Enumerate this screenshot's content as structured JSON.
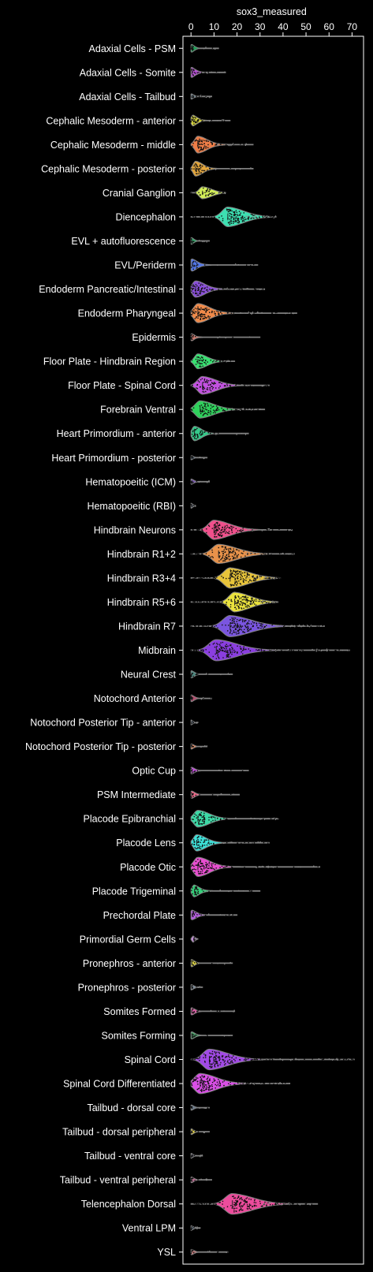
{
  "chart_data": {
    "type": "violin",
    "orientation": "horizontal",
    "xlabel": "sox3_measured",
    "xlim": [
      -3.5,
      75
    ],
    "xticks": [
      0,
      10,
      20,
      30,
      40,
      50,
      60,
      70
    ],
    "xaxis_position": "top",
    "grid": false,
    "background": "#000000",
    "categories": [
      {
        "label": "Adaxial Cells - PSM",
        "color": "#1f9e57",
        "shape": "spike",
        "width": 0.32,
        "peak": 0.4,
        "spread": 1.2,
        "tail": 2.5,
        "max": 12,
        "n": 12
      },
      {
        "label": "Adaxial Cells - Somite",
        "color": "#b54fd4",
        "shape": "spike",
        "width": 0.42,
        "peak": 0.5,
        "spread": 1.8,
        "tail": 3,
        "max": 15,
        "n": 18
      },
      {
        "label": "Adaxial Cells - Tailbud",
        "color": "#6b7f8a",
        "shape": "spike",
        "width": 0.22,
        "peak": 0.3,
        "spread": 1,
        "tail": 2,
        "max": 9,
        "n": 8
      },
      {
        "label": "Cephalic Mesoderm - anterior",
        "color": "#d9d63b",
        "shape": "spike",
        "width": 0.45,
        "peak": 1,
        "spread": 1.8,
        "tail": 4,
        "max": 17,
        "n": 30
      },
      {
        "label": "Cephalic Mesoderm - middle",
        "color": "#ee7d47",
        "shape": "hump",
        "width": 0.7,
        "peak": 3,
        "spread": 4,
        "tail": 9,
        "max": 27,
        "n": 70
      },
      {
        "label": "Cephalic Mesoderm - posterior",
        "color": "#e2a53c",
        "shape": "hump",
        "width": 0.62,
        "peak": 2,
        "spread": 3,
        "tail": 7,
        "max": 27,
        "n": 40
      },
      {
        "label": "Cranial Ganglion",
        "color": "#d3ee58",
        "shape": "hump",
        "width": 0.5,
        "peak": 5,
        "spread": 4,
        "tail": 5,
        "max": 15,
        "n": 35
      },
      {
        "label": "Diencephalon",
        "color": "#3de0b2",
        "shape": "hump",
        "width": 0.82,
        "peak": 16,
        "spread": 7,
        "tail": 9,
        "max": 37,
        "n": 140
      },
      {
        "label": "EVL + autofluorescence",
        "color": "#2fa86a",
        "shape": "spike",
        "width": 0.28,
        "peak": 0.3,
        "spread": 1,
        "tail": 2,
        "max": 8,
        "n": 8
      },
      {
        "label": "EVL/Periderm",
        "color": "#5276e8",
        "shape": "spike",
        "width": 0.5,
        "peak": 0.6,
        "spread": 2,
        "tail": 6,
        "max": 29,
        "n": 20
      },
      {
        "label": "Endoderm Pancreatic/Intestinal",
        "color": "#8a4fd9",
        "shape": "hump",
        "width": 0.68,
        "peak": 2,
        "spread": 4,
        "tail": 9,
        "max": 32,
        "n": 70
      },
      {
        "label": "Endoderm Pharyngeal",
        "color": "#f08a4a",
        "shape": "hump",
        "width": 0.8,
        "peak": 3,
        "spread": 5,
        "tail": 11,
        "max": 46,
        "n": 110
      },
      {
        "label": "Epidermis",
        "color": "#d07a6e",
        "shape": "spike",
        "width": 0.3,
        "peak": 0.3,
        "spread": 1,
        "tail": 5,
        "max": 30,
        "n": 12
      },
      {
        "label": "Floor Plate - Hindbrain Region",
        "color": "#39e072",
        "shape": "hump",
        "width": 0.62,
        "peak": 3,
        "spread": 4,
        "tail": 6,
        "max": 19,
        "n": 45
      },
      {
        "label": "Floor Plate - Spinal Cord",
        "color": "#c251e0",
        "shape": "hump",
        "width": 0.74,
        "peak": 5,
        "spread": 6,
        "tail": 8,
        "max": 34,
        "n": 80
      },
      {
        "label": "Forebrain Ventral",
        "color": "#2fd15c",
        "shape": "hump",
        "width": 0.72,
        "peak": 4,
        "spread": 6,
        "tail": 8,
        "max": 32,
        "n": 80
      },
      {
        "label": "Heart Primordium - anterior",
        "color": "#35c98a",
        "shape": "hump",
        "width": 0.6,
        "peak": 1.5,
        "spread": 3,
        "tail": 6,
        "max": 25,
        "n": 40
      },
      {
        "label": "Heart Primordium - posterior",
        "color": "#4b5f70",
        "shape": "spike",
        "width": 0.18,
        "peak": 0.2,
        "spread": 0.8,
        "tail": 2,
        "max": 7,
        "n": 6
      },
      {
        "label": "Hematopoeitic (ICM)",
        "color": "#7c5bb3",
        "shape": "spike",
        "width": 0.22,
        "peak": 0.3,
        "spread": 1,
        "tail": 2,
        "max": 8,
        "n": 8
      },
      {
        "label": "Hematopoeitic (RBI)",
        "color": "#5b6a78",
        "shape": "spike",
        "width": 0.2,
        "peak": 0.2,
        "spread": 0.8,
        "tail": 1,
        "max": 2,
        "n": 5
      },
      {
        "label": "Hindbrain Neurons",
        "color": "#f0508c",
        "shape": "hump",
        "width": 0.8,
        "peak": 10,
        "spread": 7,
        "tail": 10,
        "max": 44,
        "n": 120
      },
      {
        "label": "Hindbrain R1+2",
        "color": "#e8924a",
        "shape": "hump",
        "width": 0.8,
        "peak": 12,
        "spread": 8,
        "tail": 10,
        "max": 45,
        "n": 120
      },
      {
        "label": "Hindbrain R3+4",
        "color": "#e8c43a",
        "shape": "hump",
        "width": 0.85,
        "peak": 17,
        "spread": 8,
        "tail": 8,
        "max": 39,
        "n": 150
      },
      {
        "label": "Hindbrain R5+6",
        "color": "#eae23e",
        "shape": "hump",
        "width": 0.82,
        "peak": 19,
        "spread": 7,
        "tail": 7,
        "max": 38,
        "n": 140
      },
      {
        "label": "Hindbrain R7",
        "color": "#7a55e0",
        "shape": "hump",
        "width": 0.88,
        "peak": 17,
        "spread": 9,
        "tail": 11,
        "max": 58,
        "n": 160
      },
      {
        "label": "Midbrain",
        "color": "#8a3ee0",
        "shape": "hump",
        "width": 0.88,
        "peak": 11,
        "spread": 9,
        "tail": 12,
        "max": 69,
        "n": 160
      },
      {
        "label": "Neural Crest",
        "color": "#4f8a82",
        "shape": "spike",
        "width": 0.3,
        "peak": 0.3,
        "spread": 1.2,
        "tail": 3,
        "max": 18,
        "n": 12
      },
      {
        "label": "Notochord Anterior",
        "color": "#b34f6e",
        "shape": "spike",
        "width": 0.28,
        "peak": 0.3,
        "spread": 1.2,
        "tail": 2.5,
        "max": 9,
        "n": 10
      },
      {
        "label": "Notochord Posterior Tip - anterior",
        "color": "#6e7a88",
        "shape": "spike",
        "width": 0.2,
        "peak": 0.2,
        "spread": 0.8,
        "tail": 1.2,
        "max": 3,
        "n": 5
      },
      {
        "label": "Notochord Posterior Tip - posterior",
        "color": "#e0845a",
        "shape": "spike",
        "width": 0.22,
        "peak": 0.3,
        "spread": 1,
        "tail": 2,
        "max": 7,
        "n": 6
      },
      {
        "label": "Optic Cup",
        "color": "#c050d8",
        "shape": "spike",
        "width": 0.28,
        "peak": 0.3,
        "spread": 1.2,
        "tail": 4,
        "max": 25,
        "n": 12
      },
      {
        "label": "PSM Intermediate",
        "color": "#f06a8a",
        "shape": "spike",
        "width": 0.3,
        "peak": 0.4,
        "spread": 1.2,
        "tail": 4,
        "max": 21,
        "n": 12
      },
      {
        "label": "Placode Epibranchial",
        "color": "#3cd9a6",
        "shape": "hump",
        "width": 0.7,
        "peak": 3,
        "spread": 5,
        "tail": 8,
        "max": 38,
        "n": 70
      },
      {
        "label": "Placode Lens",
        "color": "#3ce0d8",
        "shape": "hump",
        "width": 0.68,
        "peak": 2.5,
        "spread": 4,
        "tail": 8,
        "max": 34,
        "n": 60
      },
      {
        "label": "Placode Otic",
        "color": "#e84ed0",
        "shape": "hump",
        "width": 0.8,
        "peak": 3,
        "spread": 5,
        "tail": 12,
        "max": 56,
        "n": 100
      },
      {
        "label": "Placode Trigeminal",
        "color": "#35d07a",
        "shape": "spike",
        "width": 0.5,
        "peak": 1.5,
        "spread": 2,
        "tail": 6,
        "max": 30,
        "n": 30
      },
      {
        "label": "Prechordal Plate",
        "color": "#b45ce0",
        "shape": "spike",
        "width": 0.4,
        "peak": 0.6,
        "spread": 1.8,
        "tail": 5,
        "max": 20,
        "n": 18
      },
      {
        "label": "Primordial Germ Cells",
        "color": "#c28cd8",
        "shape": "spike",
        "width": 0.25,
        "peak": 1.2,
        "spread": 1.2,
        "tail": 0.8,
        "max": 3,
        "n": 8
      },
      {
        "label": "Pronephros - anterior",
        "color": "#d8d040",
        "shape": "spike",
        "width": 0.3,
        "peak": 0.4,
        "spread": 1.2,
        "tail": 3,
        "max": 18,
        "n": 10
      },
      {
        "label": "Pronephros - posterior",
        "color": "#7a8a98",
        "shape": "spike",
        "width": 0.22,
        "peak": 0.3,
        "spread": 1,
        "tail": 2,
        "max": 5,
        "n": 6
      },
      {
        "label": "Somites Formed",
        "color": "#d85aa0",
        "shape": "spike",
        "width": 0.3,
        "peak": 0.4,
        "spread": 1.2,
        "tail": 4,
        "max": 19,
        "n": 12
      },
      {
        "label": "Somites Forming",
        "color": "#4aa86c",
        "shape": "spike",
        "width": 0.3,
        "peak": 0.4,
        "spread": 1.2,
        "tail": 4,
        "max": 18,
        "n": 12
      },
      {
        "label": "Spinal Cord",
        "color": "#a24ae6",
        "shape": "hump",
        "width": 0.86,
        "peak": 8,
        "spread": 8,
        "tail": 12,
        "max": 71,
        "n": 160
      },
      {
        "label": "Spinal Cord Differentiated",
        "color": "#d94fe6",
        "shape": "hump",
        "width": 0.84,
        "peak": 4,
        "spread": 7,
        "tail": 11,
        "max": 43,
        "n": 140
      },
      {
        "label": "Tailbud - dorsal core",
        "color": "#6c7c8c",
        "shape": "spike",
        "width": 0.22,
        "peak": 0.3,
        "spread": 1,
        "tail": 2,
        "max": 8,
        "n": 6
      },
      {
        "label": "Tailbud - dorsal peripheral",
        "color": "#d8c84a",
        "shape": "spike",
        "width": 0.24,
        "peak": 0.3,
        "spread": 1,
        "tail": 2,
        "max": 8,
        "n": 8
      },
      {
        "label": "Tailbud - ventral core",
        "color": "#6e6e7e",
        "shape": "spike",
        "width": 0.2,
        "peak": 0.2,
        "spread": 0.8,
        "tail": 1.5,
        "max": 5,
        "n": 5
      },
      {
        "label": "Tailbud - ventral peripheral",
        "color": "#b46a8c",
        "shape": "spike",
        "width": 0.24,
        "peak": 0.3,
        "spread": 1,
        "tail": 2.5,
        "max": 9,
        "n": 8
      },
      {
        "label": "Telencephalon Dorsal",
        "color": "#ec4c9c",
        "shape": "hump",
        "width": 0.86,
        "peak": 18,
        "spread": 9,
        "tail": 11,
        "max": 55,
        "n": 160
      },
      {
        "label": "Ventral LPM",
        "color": "#6a7a8a",
        "shape": "spike",
        "width": 0.2,
        "peak": 0.2,
        "spread": 0.8,
        "tail": 1.5,
        "max": 4,
        "n": 5
      },
      {
        "label": "YSL",
        "color": "#c07a7a",
        "shape": "spike",
        "width": 0.22,
        "peak": 0.3,
        "spread": 1,
        "tail": 3,
        "max": 16,
        "n": 8
      }
    ]
  }
}
